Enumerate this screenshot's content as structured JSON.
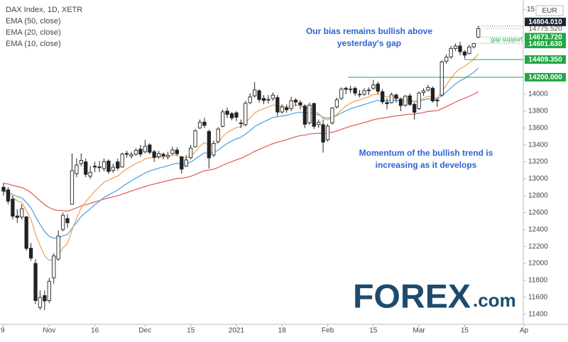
{
  "chart_data": {
    "type": "candlestick",
    "title": "DAX Index, 1D, XETR",
    "currency": "EUR",
    "categories": [
      "9",
      null,
      null,
      null,
      null,
      null,
      null,
      null,
      null,
      null,
      "Nov",
      null,
      null,
      null,
      null,
      null,
      null,
      null,
      null,
      null,
      "16",
      null,
      null,
      null,
      null,
      null,
      null,
      null,
      null,
      null,
      null,
      "Dec",
      null,
      null,
      null,
      null,
      null,
      null,
      null,
      null,
      null,
      "15",
      null,
      null,
      null,
      null,
      null,
      null,
      null,
      null,
      null,
      "2021",
      null,
      null,
      null,
      null,
      null,
      null,
      null,
      null,
      null,
      "18",
      null,
      null,
      null,
      null,
      null,
      null,
      null,
      null,
      null,
      "Feb",
      null,
      null,
      null,
      null,
      null,
      null,
      null,
      null,
      null,
      "15",
      null,
      null,
      null,
      null,
      null,
      null,
      null,
      null,
      null,
      "Mar",
      null,
      null,
      null,
      null,
      null,
      null,
      null,
      null,
      null,
      "15",
      null,
      null,
      null,
      null,
      null,
      null,
      null,
      null,
      null,
      null,
      null,
      null,
      "Ap"
    ],
    "open": [
      12900,
      12870,
      12760,
      12560,
      12550,
      12550,
      12180,
      12000,
      11480,
      11620,
      11560,
      11830,
      12050,
      12400,
      12530,
      12700,
      13060,
      13180,
      13200,
      13030,
      13150,
      13140,
      13120,
      13210,
      13100,
      13200,
      13140,
      13300,
      13270,
      13290,
      13350,
      13320,
      13400,
      13320,
      13260,
      13290,
      13260,
      13300,
      13340,
      13260,
      13150,
      13250,
      13380,
      13600,
      13670,
      13560,
      13280,
      13440,
      13620,
      13800,
      13770,
      13780,
      13660,
      13640,
      13900,
      13980,
      14040,
      13950,
      13930,
      13950,
      13960,
      13790,
      13840,
      13830,
      13930,
      13900,
      13860,
      13660,
      13890,
      13640,
      13640,
      13460,
      13660,
      13850,
      13950,
      14070,
      14060,
      14070,
      14000,
      14000,
      14050,
      14070,
      14120,
      14030,
      13900,
      13900,
      13990,
      13940,
      13870,
      13980,
      13880,
      13830,
      14020,
      14050,
      14070,
      13930,
      13990,
      14390,
      14440,
      14540,
      14570,
      14500,
      14480,
      14560,
      14673.72,
      null,
      null,
      null,
      null,
      null,
      null,
      null,
      null,
      null,
      null
    ],
    "high": [
      12950,
      12900,
      12800,
      12640,
      12700,
      12560,
      12240,
      12050,
      11680,
      11680,
      11830,
      12120,
      12390,
      12600,
      12580,
      13300,
      13240,
      13300,
      13240,
      13150,
      13200,
      13210,
      13240,
      13230,
      13180,
      13240,
      13310,
      13330,
      13320,
      13360,
      13400,
      13460,
      13420,
      13340,
      13330,
      13310,
      13320,
      13380,
      13370,
      13270,
      13280,
      13400,
      13590,
      13700,
      13720,
      13580,
      13450,
      13610,
      13820,
      13840,
      13790,
      13800,
      13700,
      13920,
      14010,
      14140,
      14060,
      13990,
      13990,
      14020,
      13990,
      13880,
      13880,
      13970,
      13950,
      13930,
      13880,
      13900,
      13900,
      13700,
      13700,
      13650,
      13850,
      13960,
      14080,
      14090,
      14100,
      14090,
      14050,
      14070,
      14080,
      14170,
      14150,
      14060,
      13950,
      14020,
      14010,
      13960,
      13990,
      14010,
      13900,
      14030,
      14070,
      14110,
      14090,
      13950,
      14400,
      14470,
      14570,
      14600,
      14620,
      14520,
      14580,
      14601.63,
      14804.01,
      null,
      null,
      null,
      null,
      null,
      null,
      null,
      null,
      null,
      null
    ],
    "low": [
      12800,
      12700,
      12520,
      12480,
      12520,
      12150,
      12030,
      11520,
      11450,
      11450,
      11530,
      11760,
      12030,
      12380,
      12420,
      12700,
      13020,
      13150,
      13020,
      13000,
      13080,
      13080,
      13090,
      13060,
      13070,
      13100,
      13130,
      13250,
      13240,
      13270,
      13260,
      13300,
      13290,
      13200,
      13240,
      13230,
      13230,
      13280,
      13270,
      13060,
      13140,
      13230,
      13370,
      13590,
      13600,
      13120,
      13260,
      13420,
      13610,
      13720,
      13690,
      13680,
      13600,
      13620,
      13880,
      13960,
      13900,
      13880,
      13890,
      13920,
      13740,
      13770,
      13780,
      13800,
      13860,
      13820,
      13600,
      13640,
      13590,
      13600,
      13310,
      13440,
      13640,
      13830,
      13930,
      14000,
      14010,
      13980,
      13960,
      13980,
      13990,
      14050,
      14000,
      13880,
      13820,
      13890,
      13900,
      13800,
      13850,
      13860,
      13700,
      13810,
      13980,
      14030,
      13900,
      13850,
      13970,
      14360,
      14420,
      14510,
      14460,
      14420,
      14470,
      14540,
      14660,
      null,
      null,
      null,
      null,
      null,
      null,
      null,
      null,
      null,
      null
    ],
    "close": [
      12854,
      12736,
      12558,
      12543,
      12645,
      12177,
      12063,
      11561,
      11598,
      11556,
      11789,
      12089,
      12324,
      12568,
      12480,
      13096,
      13163,
      13217,
      13052,
      13077,
      13139,
      13134,
      13202,
      13086,
      13137,
      13127,
      13292,
      13290,
      13286,
      13336,
      13292,
      13383,
      13313,
      13253,
      13299,
      13271,
      13278,
      13340,
      13296,
      13114,
      13223,
      13363,
      13566,
      13668,
      13631,
      13247,
      13418,
      13588,
      13791,
      13761,
      13719,
      13727,
      13651,
      13892,
      13968,
      14050,
      13937,
      13925,
      13940,
      13989,
      13788,
      13849,
      13816,
      13922,
      13907,
      13874,
      13644,
      13871,
      13620,
      13666,
      13433,
      13623,
      13835,
      13934,
      14060,
      14057,
      14060,
      14012,
      14000,
      14041,
      14050,
      14109,
      14034,
      13909,
      13887,
      13993,
      13950,
      13865,
      13976,
      13879,
      13786,
      14012,
      14039,
      14080,
      13920,
      13921,
      14381,
      14437,
      14541,
      14569,
      14502,
      14461,
      14558,
      14597,
      14775.52,
      null,
      null,
      null,
      null,
      null,
      null,
      null,
      null,
      null,
      null
    ],
    "series": [
      {
        "name": "EMA (50, close)",
        "color": "#e05656",
        "values": [
          12946,
          12938,
          12923,
          12908,
          12898,
          12870,
          12838,
          12788,
          12741,
          12695,
          12659,
          12637,
          12625,
          12623,
          12617,
          12636,
          12657,
          12679,
          12694,
          12709,
          12726,
          12742,
          12760,
          12773,
          12787,
          12800,
          12819,
          12837,
          12855,
          12874,
          12890,
          12909,
          12925,
          12938,
          12952,
          12965,
          12977,
          12991,
          13003,
          13007,
          13015,
          13029,
          13050,
          13074,
          13096,
          13102,
          13114,
          13133,
          13159,
          13183,
          13204,
          13224,
          13241,
          13267,
          13294,
          13324,
          13348,
          13371,
          13393,
          13416,
          13431,
          13447,
          13461,
          13479,
          13496,
          13511,
          13516,
          13530,
          13534,
          13539,
          13535,
          13538,
          13550,
          13565,
          13584,
          13603,
          13621,
          13636,
          13650,
          13665,
          13680,
          13697,
          13710,
          13718,
          13725,
          13736,
          13744,
          13749,
          13758,
          13763,
          13764,
          13774,
          13784,
          13796,
          13801,
          13806,
          13829,
          13853,
          13880,
          13907,
          13930,
          13951,
          13975,
          13999,
          14029,
          null,
          null,
          null,
          null,
          null,
          null,
          null,
          null,
          null,
          null
        ]
      },
      {
        "name": "EMA (20, close)",
        "color": "#4a9ee0",
        "values": [
          12854,
          12843,
          12816,
          12790,
          12776,
          12719,
          12657,
          12553,
          12462,
          12376,
          12320,
          12298,
          12300,
          12326,
          12341,
          12413,
          12484,
          12554,
          12601,
          12646,
          12693,
          12735,
          12779,
          12808,
          12839,
          12866,
          12907,
          12943,
          12976,
          13010,
          13037,
          13070,
          13093,
          13108,
          13126,
          13140,
          13153,
          13171,
          13183,
          13176,
          13180,
          13197,
          13232,
          13273,
          13307,
          13301,
          13312,
          13338,
          13381,
          13417,
          13446,
          13473,
          13490,
          13528,
          13570,
          13616,
          13647,
          13673,
          13698,
          13726,
          13732,
          13743,
          13750,
          13766,
          13779,
          13788,
          13774,
          13783,
          13767,
          13757,
          13726,
          13716,
          13727,
          13747,
          13777,
          13804,
          13828,
          13846,
          13861,
          13878,
          13894,
          13914,
          13925,
          13923,
          13920,
          13927,
          13929,
          13923,
          13928,
          13923,
          13910,
          13920,
          13931,
          13945,
          13943,
          13941,
          13983,
          14026,
          14075,
          14122,
          14158,
          14187,
          14222,
          14258,
          14307,
          null,
          null,
          null,
          null,
          null,
          null,
          null,
          null,
          null,
          null
        ]
      },
      {
        "name": "EMA (10, close)",
        "color": "#f0a150",
        "values": [
          12854,
          12833,
          12783,
          12739,
          12722,
          12623,
          12521,
          12346,
          12210,
          12091,
          12036,
          12046,
          12097,
          12183,
          12237,
          12393,
          12533,
          12657,
          12729,
          12792,
          12855,
          12906,
          12960,
          12983,
          13011,
          13032,
          13079,
          13117,
          13148,
          13182,
          13202,
          13235,
          13249,
          13250,
          13259,
          13261,
          13264,
          13278,
          13281,
          13251,
          13246,
          13267,
          13321,
          13384,
          13429,
          13396,
          13400,
          13434,
          13499,
          13547,
          13578,
          13605,
          13613,
          13664,
          13719,
          13779,
          13808,
          13829,
          13849,
          13874,
          13858,
          13856,
          13849,
          13862,
          13870,
          13871,
          13830,
          13837,
          13798,
          13774,
          13712,
          13696,
          13721,
          13760,
          13815,
          13859,
          13896,
          13917,
          13932,
          13952,
          13970,
          13995,
          14002,
          13985,
          13967,
          13972,
          13968,
          13949,
          13954,
          13940,
          13912,
          13930,
          13950,
          13974,
          13964,
          13956,
          14033,
          14107,
          14186,
          14256,
          14301,
          14330,
          14371,
          14412,
          14478,
          null,
          null,
          null,
          null,
          null,
          null,
          null,
          null,
          null,
          null
        ]
      }
    ],
    "ylim": [
      11247,
      15046
    ],
    "yticks": [
      11400,
      11600,
      11800,
      12000,
      12200,
      12400,
      12600,
      12800,
      13000,
      13200,
      13400,
      13600,
      13800,
      14000,
      {
        "value": 15000,
        "label": "15"
      }
    ],
    "price_labels": [
      {
        "value": 14804.01,
        "label": "14804.010"
      },
      {
        "value": 14775.52,
        "label": "14775.520"
      },
      {
        "value": 14673.72,
        "label": "14673.720"
      },
      {
        "value": 14601.63,
        "label": "14601.630"
      },
      {
        "value": 14409.35,
        "label": "14409.350"
      },
      {
        "value": 14200,
        "label": "14200.000"
      }
    ],
    "gap_label": "gap support",
    "annotations": [
      {
        "lines": [
          "Our bias remains bullish above",
          "yesterday's gap"
        ]
      },
      {
        "lines": [
          "Momentum of the bullish trend is",
          "increasing as it develops"
        ]
      }
    ],
    "logo": {
      "main": "FOREX",
      "suffix": ".com"
    }
  }
}
